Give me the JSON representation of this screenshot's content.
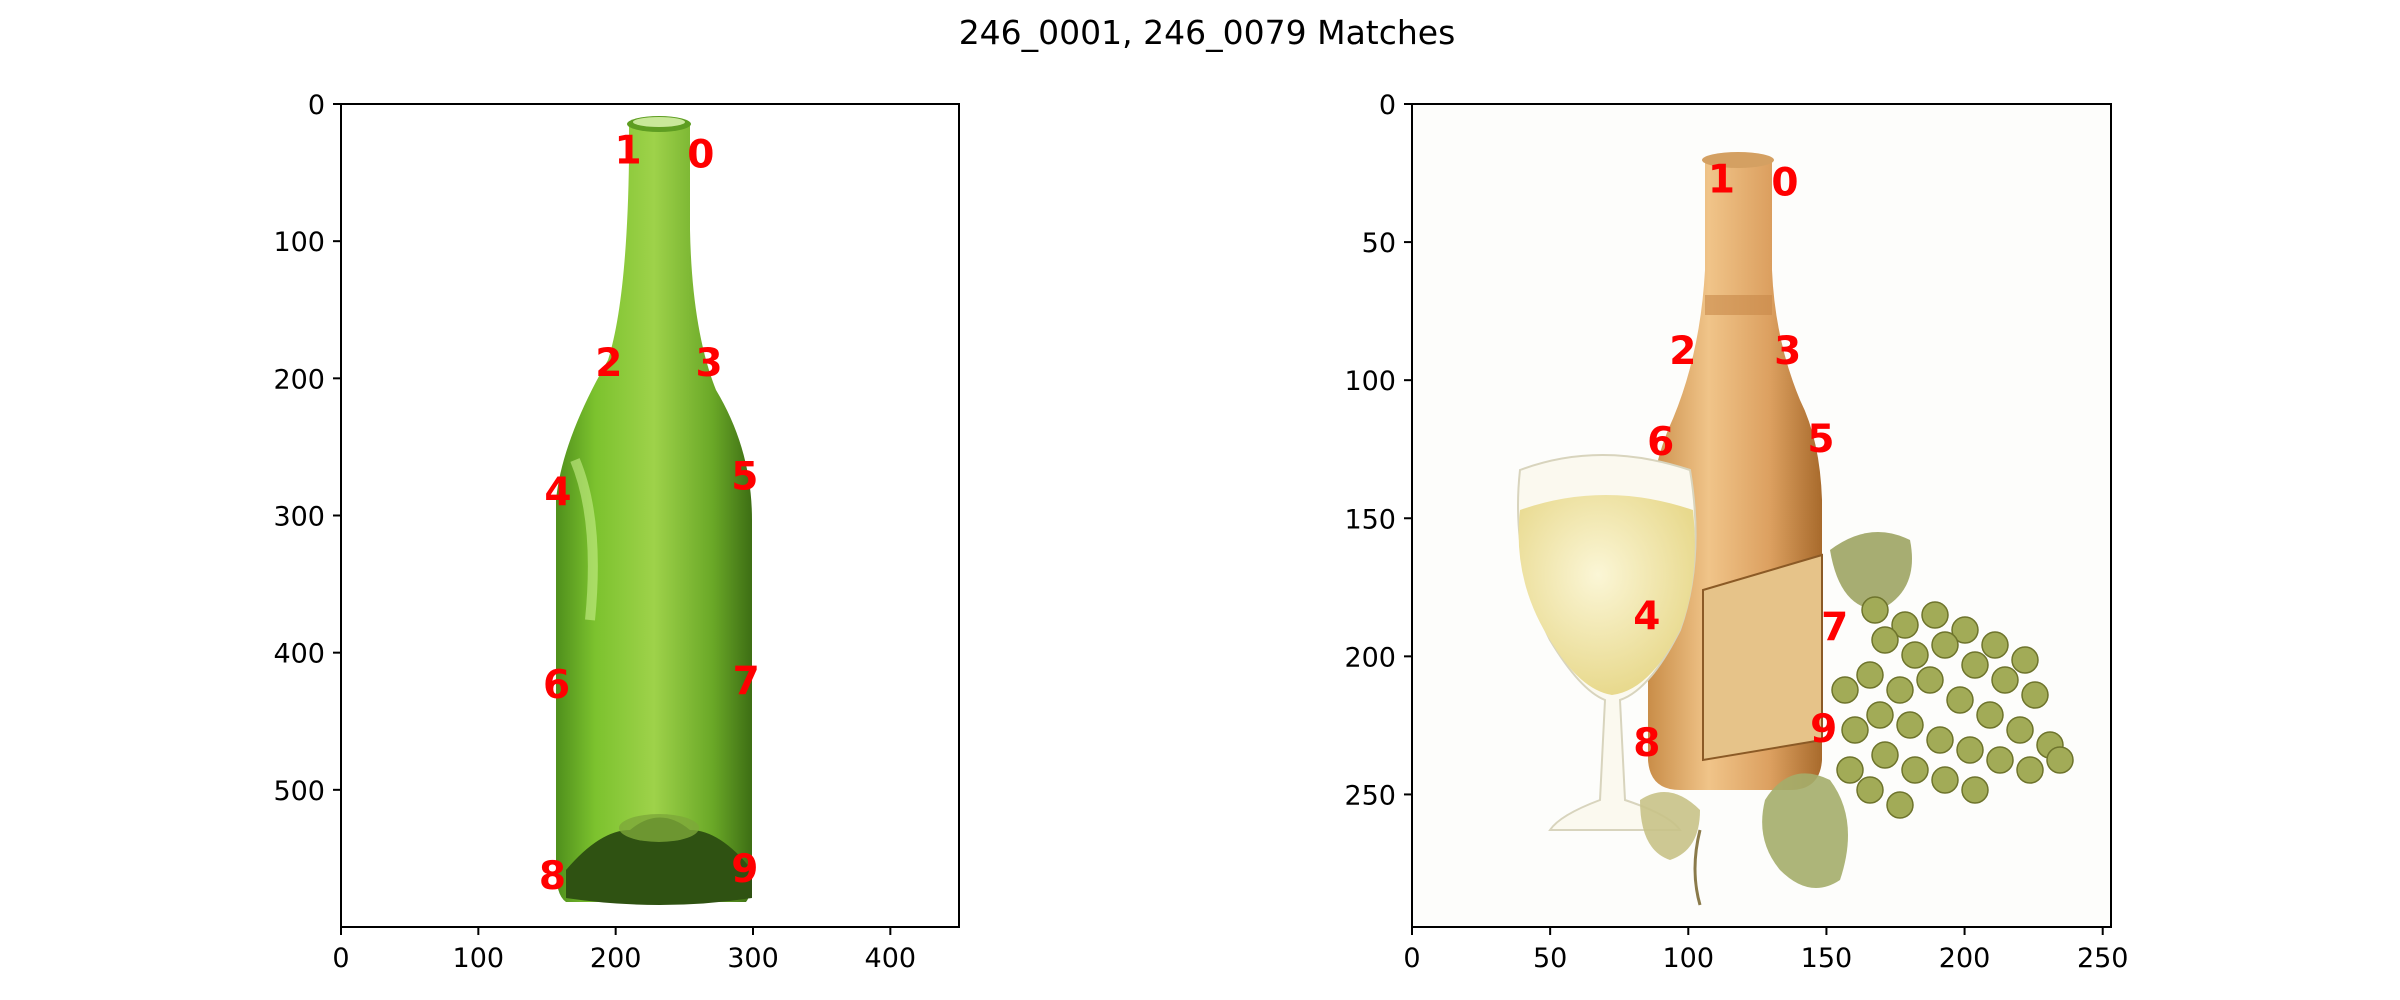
{
  "title": "246_0001, 246_0079 Matches",
  "colors": {
    "keypoint_label": "#ff0000",
    "left_bottle_green": "#6fb52c",
    "right_bottle_amber": "#d9a465",
    "wine_glass": "#f2e7a8",
    "grapes": "#a2ab57",
    "background": "#ffffff"
  },
  "chart_data": [
    {
      "type": "scatter",
      "panel": "left",
      "image": "green-bottle",
      "xlim": [
        0,
        450
      ],
      "ylim": [
        600,
        0
      ],
      "xticks": [
        0,
        100,
        200,
        300,
        400
      ],
      "yticks": [
        0,
        100,
        200,
        300,
        400,
        500
      ],
      "points": [
        {
          "label": "0",
          "x": 262,
          "y": 36
        },
        {
          "label": "1",
          "x": 209,
          "y": 33
        },
        {
          "label": "2",
          "x": 195,
          "y": 188
        },
        {
          "label": "3",
          "x": 268,
          "y": 188
        },
        {
          "label": "4",
          "x": 158,
          "y": 282
        },
        {
          "label": "5",
          "x": 294,
          "y": 271
        },
        {
          "label": "6",
          "x": 157,
          "y": 423
        },
        {
          "label": "7",
          "x": 295,
          "y": 420
        },
        {
          "label": "8",
          "x": 154,
          "y": 562
        },
        {
          "label": "9",
          "x": 294,
          "y": 557
        }
      ]
    },
    {
      "type": "scatter",
      "panel": "right",
      "image": "wine-bottle-glass-grapes",
      "xlim": [
        0,
        253
      ],
      "ylim": [
        298,
        0
      ],
      "xticks": [
        0,
        50,
        100,
        150,
        200,
        250
      ],
      "yticks": [
        0,
        50,
        100,
        150,
        200,
        250
      ],
      "points": [
        {
          "label": "0",
          "x": 135,
          "y": 28
        },
        {
          "label": "1",
          "x": 112,
          "y": 27
        },
        {
          "label": "2",
          "x": 98,
          "y": 89
        },
        {
          "label": "3",
          "x": 136,
          "y": 89
        },
        {
          "label": "4",
          "x": 85,
          "y": 185
        },
        {
          "label": "5",
          "x": 148,
          "y": 121
        },
        {
          "label": "6",
          "x": 90,
          "y": 122
        },
        {
          "label": "7",
          "x": 153,
          "y": 189
        },
        {
          "label": "8",
          "x": 85,
          "y": 231
        },
        {
          "label": "9",
          "x": 149,
          "y": 226
        }
      ]
    }
  ]
}
